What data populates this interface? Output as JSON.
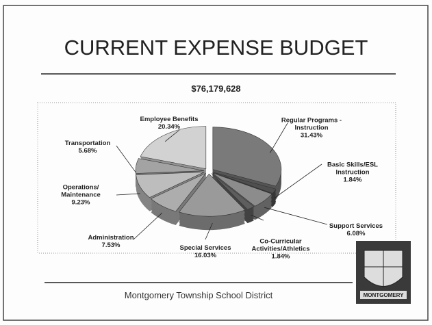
{
  "chart_data": {
    "type": "pie",
    "title": "CURRENT EXPENSE BUDGET",
    "subtitle": "$76,179,628",
    "footer": "Montgomery Township School District",
    "logo_text": "MONTGOMERY",
    "categories": [
      "Regular Programs -\nInstruction",
      "Basic Skills/ESL\nInstruction",
      "Support Services",
      "Co-Curricular\nActivities/Athletics",
      "Special Services",
      "Administration",
      "Operations/\nMaintenance",
      "Transportation",
      "Employee Benefits"
    ],
    "values": [
      31.43,
      1.84,
      6.08,
      1.84,
      16.03,
      7.53,
      9.23,
      5.68,
      20.34
    ],
    "value_labels": [
      "31.43%",
      "1.84%",
      "6.08%",
      "1.84%",
      "16.03%",
      "7.53%",
      "9.23%",
      "5.68%",
      "20.34%"
    ],
    "colors": [
      "#7a7a7a",
      "#4f4f4f",
      "#8c8c8c",
      "#5e5e5e",
      "#9a9a9a",
      "#adadad",
      "#bdbdbd",
      "#a3a3a3",
      "#d2d2d2"
    ]
  }
}
